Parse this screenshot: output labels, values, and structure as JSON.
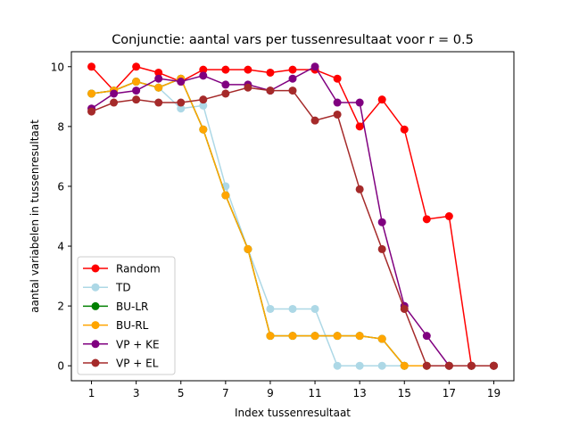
{
  "chart_data": {
    "type": "line",
    "title": "Conjunctie: aantal vars per tussenresultaat voor r = 0.5",
    "xlabel": "Index tussenresultaat",
    "ylabel": "aantal variabelen in tussenresultaat",
    "x": [
      1,
      2,
      3,
      4,
      5,
      6,
      7,
      8,
      9,
      10,
      11,
      12,
      13,
      14,
      15,
      16,
      17,
      18,
      19
    ],
    "xlim": [
      0.1,
      19.9
    ],
    "ylim": [
      -0.5,
      10.5
    ],
    "xticks": [
      "1",
      "3",
      "5",
      "7",
      "9",
      "11",
      "13",
      "15",
      "17",
      "19"
    ],
    "yticks": [
      "0",
      "2",
      "4",
      "6",
      "8",
      "10"
    ],
    "legend_position": "lower-left",
    "grid": false,
    "series": [
      {
        "name": "Random",
        "color": "#ff0000",
        "values": [
          10.0,
          9.2,
          10.0,
          9.8,
          9.5,
          9.9,
          9.9,
          9.9,
          9.8,
          9.9,
          9.9,
          9.6,
          8.0,
          8.9,
          7.9,
          4.9,
          5.0,
          0.0,
          0.0
        ]
      },
      {
        "name": "TD",
        "color": "#add8e6",
        "values": [
          9.1,
          9.2,
          9.5,
          9.3,
          8.6,
          8.7,
          6.0,
          3.9,
          1.9,
          1.9,
          1.9,
          0.0,
          0.0,
          0.0,
          0.0,
          0.0,
          0.0,
          0.0,
          0.0
        ]
      },
      {
        "name": "BU-LR",
        "color": "#008000",
        "values": [
          9.1,
          9.2,
          9.5,
          9.3,
          9.6,
          7.9,
          5.7,
          3.9,
          1.0,
          1.0,
          1.0,
          1.0,
          1.0,
          0.9,
          0.0,
          0.0,
          0.0,
          0.0,
          0.0
        ]
      },
      {
        "name": "BU-RL",
        "color": "#ffa500",
        "values": [
          9.1,
          9.2,
          9.5,
          9.3,
          9.6,
          7.9,
          5.7,
          3.9,
          1.0,
          1.0,
          1.0,
          1.0,
          1.0,
          0.9,
          0.0,
          0.0,
          0.0,
          0.0,
          0.0
        ]
      },
      {
        "name": "VP + KE",
        "color": "#800080",
        "values": [
          8.6,
          9.1,
          9.2,
          9.6,
          9.5,
          9.7,
          9.4,
          9.4,
          9.2,
          9.6,
          10.0,
          8.8,
          8.8,
          4.8,
          2.0,
          1.0,
          0.0,
          0.0,
          0.0
        ]
      },
      {
        "name": "VP + EL",
        "color": "#a52a2a",
        "values": [
          8.5,
          8.8,
          8.9,
          8.8,
          8.8,
          8.9,
          9.1,
          9.3,
          9.2,
          9.2,
          8.2,
          8.4,
          5.9,
          3.9,
          1.9,
          0.0,
          0.0,
          0.0,
          0.0
        ]
      }
    ]
  }
}
